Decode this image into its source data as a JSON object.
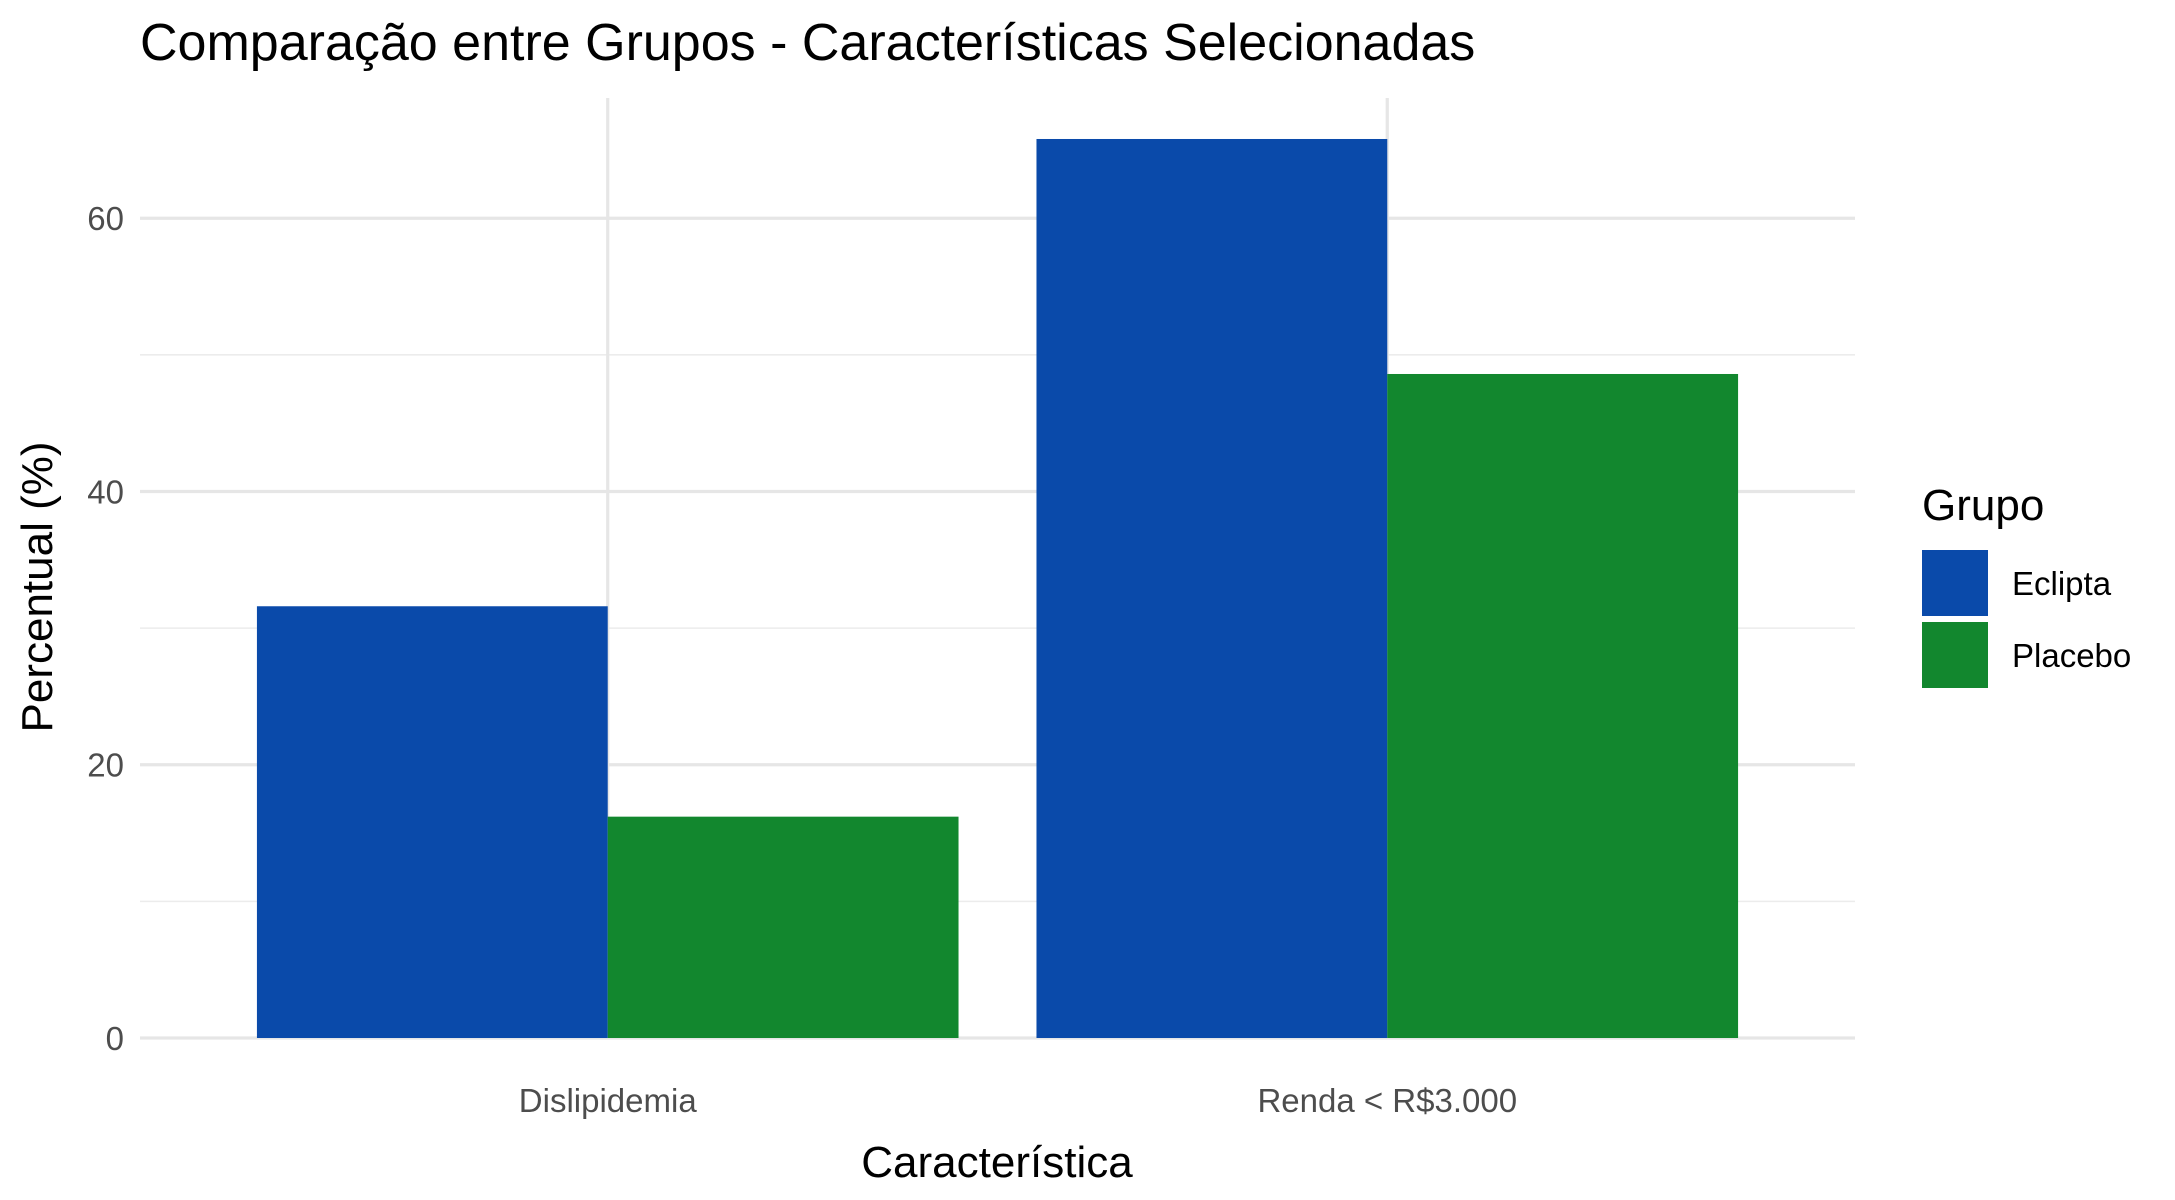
{
  "chart_data": {
    "type": "bar",
    "title": "Comparação entre Grupos - Características Selecionadas",
    "xlabel": "Característica",
    "ylabel": "Percentual (%)",
    "categories": [
      "Dislipidemia",
      "Renda < R$3.000"
    ],
    "series": [
      {
        "name": "Eclipta",
        "color": "#0a4aaa",
        "values": [
          31.6,
          65.8
        ]
      },
      {
        "name": "Placebo",
        "color": "#12872e",
        "values": [
          16.2,
          48.6
        ]
      }
    ],
    "ylim": [
      0,
      68.8
    ],
    "yticks": [
      0,
      20,
      40,
      60
    ],
    "ytick_labels": [
      "0",
      "20",
      "40",
      "60"
    ],
    "minor_yticks": [
      10,
      30,
      50
    ],
    "legend": {
      "title": "Grupo",
      "position": "right"
    },
    "grid": true
  }
}
